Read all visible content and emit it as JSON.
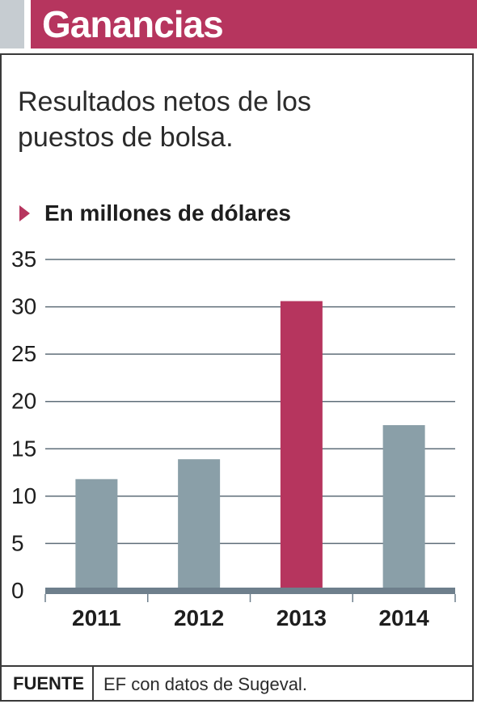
{
  "header": {
    "title": "Ganancias"
  },
  "subtitle": "Resultados netos de los puestos de bolsa.",
  "unit_label": "En millones de dólares",
  "colors": {
    "accent": "#b6355e",
    "bar": "#8a9fa8",
    "axis": "#6e7f8c",
    "grid": "#5f6e79"
  },
  "chart_data": {
    "type": "bar",
    "title": "",
    "xlabel": "",
    "ylabel": "En millones de dólares",
    "categories": [
      "2011",
      "2012",
      "2013",
      "2014"
    ],
    "values": [
      11.8,
      13.9,
      30.6,
      17.5
    ],
    "highlight_index": 2,
    "ylim": [
      0,
      35
    ],
    "yticks": [
      0,
      5,
      10,
      15,
      20,
      25,
      30,
      35
    ],
    "grid": true
  },
  "footer": {
    "source_label": "FUENTE",
    "source_text": "EF con datos de Sugeval."
  }
}
